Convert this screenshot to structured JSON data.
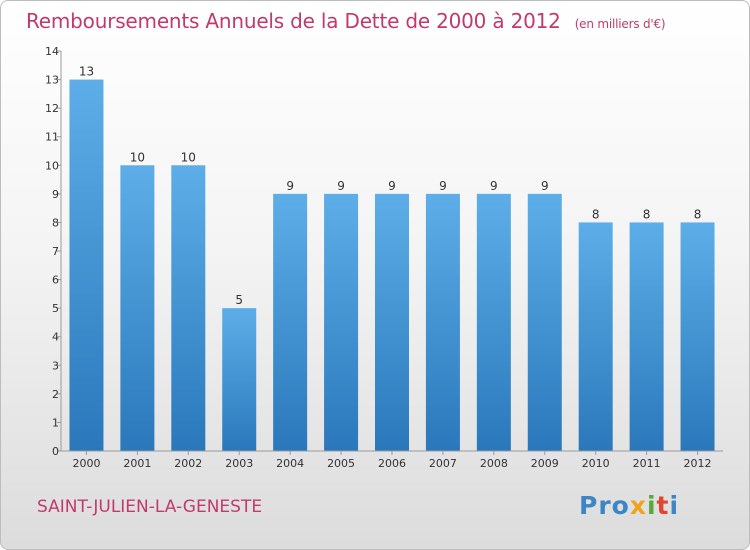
{
  "header": {
    "title": "Remboursements Annuels de la Dette de 2000 à 2012",
    "unit": "(en milliers d'€)"
  },
  "footer": {
    "place": "SAINT-JULIEN-LA-GENESTE",
    "logo": "Proxiti"
  },
  "colors": {
    "accent": "#c23a6b",
    "bar_top": "#5daee8",
    "bar_bottom": "#2a78bb"
  },
  "chart_data": {
    "type": "bar",
    "title": "Remboursements Annuels de la Dette de 2000 à 2012",
    "xlabel": "",
    "ylabel": "",
    "categories": [
      "2000",
      "2001",
      "2002",
      "2003",
      "2004",
      "2005",
      "2006",
      "2007",
      "2008",
      "2009",
      "2010",
      "2011",
      "2012"
    ],
    "values": [
      13,
      10,
      10,
      5,
      9,
      9,
      9,
      9,
      9,
      9,
      8,
      8,
      8
    ],
    "ylim": [
      0,
      14
    ],
    "yticks": [
      0,
      1,
      2,
      3,
      4,
      5,
      6,
      7,
      8,
      9,
      10,
      11,
      12,
      13,
      14
    ],
    "grid": false,
    "legend": "none",
    "data_labels": true
  }
}
